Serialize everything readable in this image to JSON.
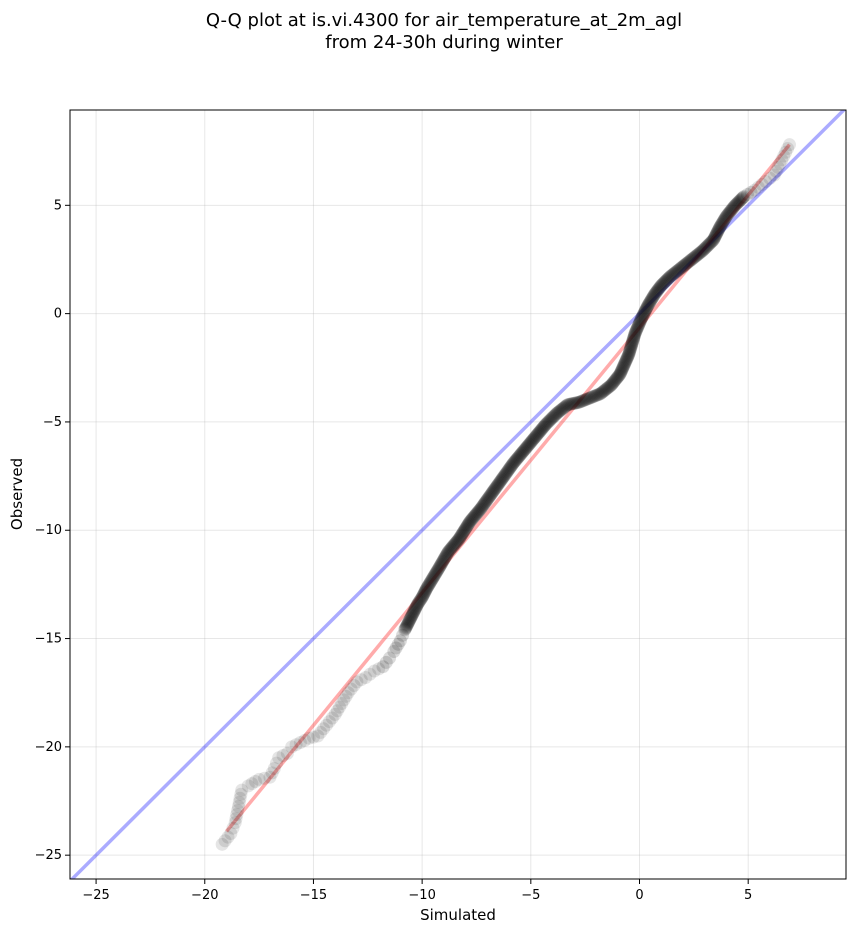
{
  "chart_data": {
    "type": "scatter",
    "title": [
      "Q-Q plot at is.vi.4300 for air_temperature_at_2m_agl",
      "from 24-30h during winter"
    ],
    "xlabel": "Simulated",
    "ylabel": "Observed",
    "xlim": [
      -26.2,
      9.5
    ],
    "ylim": [
      -26.1,
      9.4
    ],
    "xticks": [
      -25,
      -20,
      -15,
      -10,
      -5,
      0,
      5
    ],
    "yticks": [
      -25,
      -20,
      -15,
      -10,
      -5,
      0,
      5
    ],
    "grid": true,
    "colors": {
      "points": "#000000",
      "identity_line": "#0000ff",
      "fit_line": "#ff0000"
    },
    "identity_line": [
      [
        -26.2,
        -26.2
      ],
      [
        9.5,
        9.5
      ]
    ],
    "fit_line": [
      [
        -19.0,
        -23.9
      ],
      [
        6.9,
        7.8
      ]
    ],
    "points_anchor": [
      [
        -19.2,
        -24.5
      ],
      [
        -18.8,
        -24.0
      ],
      [
        -18.6,
        -23.5
      ],
      [
        -18.3,
        -22.0
      ],
      [
        -18.0,
        -21.8
      ],
      [
        -17.5,
        -21.5
      ],
      [
        -17.0,
        -21.4
      ],
      [
        -16.8,
        -21.0
      ],
      [
        -16.6,
        -20.5
      ],
      [
        -16.2,
        -20.3
      ],
      [
        -16.0,
        -20.0
      ],
      [
        -15.6,
        -19.8
      ],
      [
        -15.2,
        -19.6
      ],
      [
        -14.8,
        -19.5
      ],
      [
        -14.4,
        -19.0
      ],
      [
        -14.0,
        -18.5
      ],
      [
        -13.7,
        -18.0
      ],
      [
        -13.4,
        -17.5
      ],
      [
        -13.0,
        -17.0
      ],
      [
        -12.6,
        -16.8
      ],
      [
        -12.2,
        -16.5
      ],
      [
        -11.8,
        -16.3
      ],
      [
        -11.5,
        -15.9
      ],
      [
        -11.3,
        -15.6
      ],
      [
        -11.0,
        -15.1
      ],
      [
        -10.8,
        -14.6
      ],
      [
        -10.6,
        -14.2
      ],
      [
        -10.4,
        -13.8
      ],
      [
        -10.2,
        -13.4
      ],
      [
        -10.0,
        -13.1
      ],
      [
        -9.8,
        -12.7
      ],
      [
        -9.5,
        -12.2
      ],
      [
        -9.2,
        -11.7
      ],
      [
        -8.8,
        -11.0
      ],
      [
        -8.3,
        -10.4
      ],
      [
        -7.8,
        -9.6
      ],
      [
        -7.3,
        -9.0
      ],
      [
        -6.8,
        -8.3
      ],
      [
        -6.3,
        -7.6
      ],
      [
        -5.8,
        -6.9
      ],
      [
        -5.3,
        -6.3
      ],
      [
        -4.8,
        -5.7
      ],
      [
        -4.3,
        -5.1
      ],
      [
        -3.8,
        -4.6
      ],
      [
        -3.3,
        -4.2
      ],
      [
        -2.8,
        -4.1
      ],
      [
        -2.3,
        -3.9
      ],
      [
        -1.8,
        -3.7
      ],
      [
        -1.3,
        -3.3
      ],
      [
        -0.9,
        -2.8
      ],
      [
        -0.5,
        -1.9
      ],
      [
        -0.2,
        -0.9
      ],
      [
        0.1,
        -0.2
      ],
      [
        0.4,
        0.4
      ],
      [
        0.7,
        0.9
      ],
      [
        1.0,
        1.3
      ],
      [
        1.4,
        1.7
      ],
      [
        1.9,
        2.1
      ],
      [
        2.4,
        2.5
      ],
      [
        2.9,
        2.9
      ],
      [
        3.4,
        3.4
      ],
      [
        3.7,
        4.0
      ],
      [
        4.0,
        4.5
      ],
      [
        4.4,
        5.0
      ],
      [
        4.8,
        5.4
      ],
      [
        5.3,
        5.7
      ],
      [
        5.8,
        6.1
      ],
      [
        6.2,
        6.4
      ],
      [
        6.9,
        7.8
      ]
    ]
  }
}
